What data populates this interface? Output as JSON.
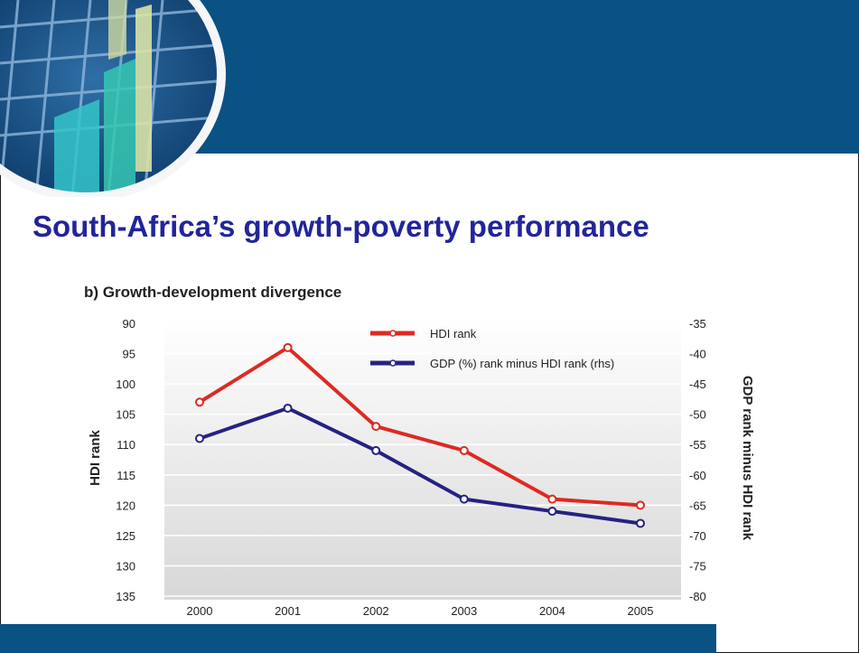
{
  "slide": {
    "title": "South-Africa’s growth-poverty performance"
  },
  "colors": {
    "header": "#0a5184",
    "title": "#22259a",
    "hdi_series": "#dd2a22",
    "gdp_series": "#252282"
  },
  "chart_data": {
    "type": "line",
    "title": "b) Growth-development divergence",
    "x": [
      "2000",
      "2001",
      "2002",
      "2003",
      "2004",
      "2005"
    ],
    "ylabel_left": "HDI rank",
    "ylabel_right": "GDP rank minus HDI rank",
    "ylim_left": [
      90,
      135
    ],
    "ylim_right": [
      -35,
      -80
    ],
    "yticks_left": [
      "90",
      "95",
      "100",
      "105",
      "110",
      "115",
      "120",
      "125",
      "130",
      "135"
    ],
    "yticks_right": [
      "-35",
      "-40",
      "-45",
      "-50",
      "-55",
      "-60",
      "-65",
      "-70",
      "-75",
      "-80"
    ],
    "left_axis_inverted": true,
    "grid": true,
    "legend_position": "top-right",
    "series": [
      {
        "name": "HDI rank",
        "axis": "left",
        "values": [
          103,
          94,
          107,
          111,
          119,
          120
        ]
      },
      {
        "name": "GDP (%) rank minus HDI rank (rhs)",
        "axis": "right",
        "values": [
          -54,
          -49,
          -56,
          -64,
          -66,
          -68
        ]
      }
    ]
  }
}
